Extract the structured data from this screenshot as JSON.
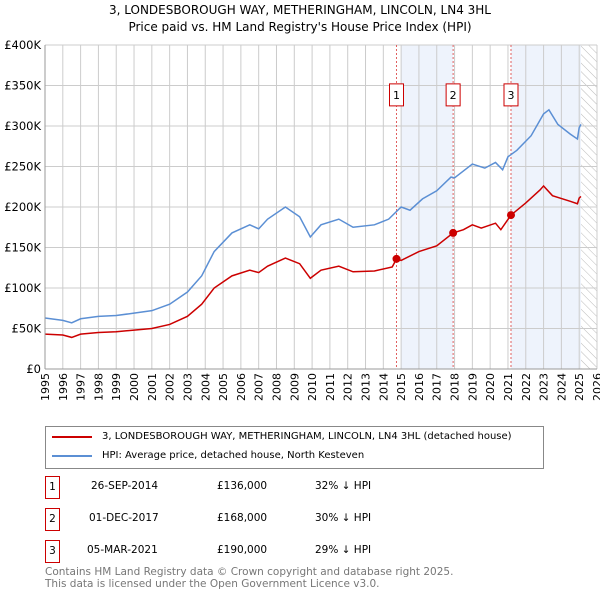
{
  "title": "3, LONDESBOROUGH WAY, METHERINGHAM, LINCOLN, LN4 3HL",
  "subtitle": "Price paid vs. HM Land Registry's House Price Index (HPI)",
  "chart_data": {
    "type": "line",
    "ylim": [
      0,
      400000
    ],
    "xlim": [
      1995,
      2026
    ],
    "y_ticks": [
      "£0",
      "£50K",
      "£100K",
      "£150K",
      "£200K",
      "£250K",
      "£300K",
      "£350K",
      "£400K"
    ],
    "x_ticks": [
      "1995",
      "1996",
      "1997",
      "1998",
      "1999",
      "2000",
      "2001",
      "2002",
      "2003",
      "2004",
      "2005",
      "2006",
      "2007",
      "2008",
      "2009",
      "2010",
      "2011",
      "2012",
      "2013",
      "2014",
      "2015",
      "2016",
      "2017",
      "2018",
      "2019",
      "2020",
      "2021",
      "2022",
      "2023",
      "2024",
      "2025",
      "2026"
    ],
    "grid": true,
    "series": [
      {
        "name": "3, LONDESBOROUGH WAY, METHERINGHAM, LINCOLN, LN4 3HL (detached house)",
        "color": "#cc0000",
        "x": [
          1995,
          1996,
          1996.5,
          1997,
          1998,
          1999,
          2000,
          2001,
          2002,
          2003,
          2003.8,
          2004.5,
          2005.5,
          2006.5,
          2007,
          2007.5,
          2008.5,
          2009.3,
          2009.9,
          2010.5,
          2011.5,
          2012.3,
          2013.5,
          2014.5,
          2014.74,
          2015,
          2016,
          2017,
          2017.92,
          2018.5,
          2019,
          2019.5,
          2020.3,
          2020.6,
          2021.17,
          2022,
          2022.8,
          2023,
          2023.5,
          2024.5,
          2024.9,
          2025,
          2025.1
        ],
        "y": [
          43,
          42,
          39,
          43,
          45,
          46,
          48,
          50,
          55,
          65,
          80,
          100,
          115,
          122,
          119,
          127,
          137,
          130,
          112,
          122,
          127,
          120,
          121,
          126,
          136,
          134,
          145,
          152,
          168,
          172,
          178,
          174,
          180,
          172,
          190,
          205,
          221,
          226,
          214,
          207,
          204,
          211,
          213
        ]
      },
      {
        "name": "HPI: Average price, detached house, North Kesteven",
        "color": "#5b8fd4",
        "x": [
          1995,
          1996,
          1996.5,
          1997,
          1998,
          1999,
          2000,
          2001,
          2002,
          2003,
          2003.8,
          2004.5,
          2005.5,
          2006.5,
          2007,
          2007.5,
          2008.5,
          2009.3,
          2009.9,
          2010.5,
          2011.5,
          2012.3,
          2013.5,
          2014.3,
          2015,
          2015.5,
          2016.2,
          2017,
          2017.8,
          2018,
          2019,
          2019.7,
          2020.3,
          2020.7,
          2021,
          2021.5,
          2022.3,
          2023,
          2023.3,
          2023.8,
          2024.5,
          2024.9,
          2025,
          2025.1
        ],
        "y": [
          63,
          60,
          57,
          62,
          65,
          66,
          69,
          72,
          80,
          95,
          115,
          145,
          168,
          178,
          173,
          185,
          200,
          188,
          163,
          178,
          185,
          175,
          178,
          185,
          200,
          196,
          210,
          220,
          237,
          236,
          253,
          248,
          255,
          246,
          262,
          270,
          288,
          315,
          320,
          302,
          290,
          284,
          298,
          302
        ]
      }
    ],
    "y_unit": "thousands GBP",
    "sales": [
      {
        "label": "1",
        "x": 2014.74,
        "y": 136,
        "date": "26-SEP-2014",
        "price": "£136,000",
        "hpi": "32% ↓ HPI"
      },
      {
        "label": "2",
        "x": 2017.92,
        "y": 168,
        "date": "01-DEC-2017",
        "price": "£168,000",
        "hpi": "30% ↓ HPI"
      },
      {
        "label": "3",
        "x": 2021.17,
        "y": 190,
        "date": "05-MAR-2021",
        "price": "£190,000",
        "hpi": "29% ↓ HPI"
      }
    ],
    "shaded_ranges": [
      [
        2015,
        2017.92
      ],
      [
        2021.17,
        2025.1
      ]
    ],
    "forecast_hatch_from": 2025.1
  },
  "legend": {
    "red": "3, LONDESBOROUGH WAY, METHERINGHAM, LINCOLN, LN4 3HL (detached house)",
    "blue": "HPI: Average price, detached house, North Kesteven"
  },
  "footer": [
    "Contains HM Land Registry data © Crown copyright and database right 2025.",
    "This data is licensed under the Open Government Licence v3.0."
  ]
}
